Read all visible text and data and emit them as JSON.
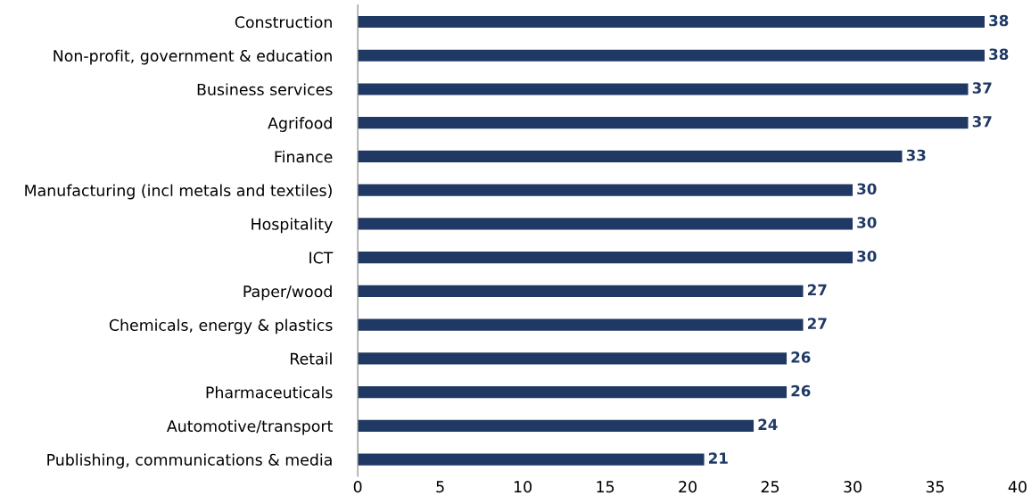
{
  "chart_data": {
    "type": "bar",
    "orientation": "horizontal",
    "categories": [
      "Construction",
      "Non-profit, government & education",
      "Business services",
      "Agrifood",
      "Finance",
      "Manufacturing (incl metals and textiles)",
      "Hospitality",
      "ICT",
      "Paper/wood",
      "Chemicals, energy & plastics",
      "Retail",
      "Pharmaceuticals",
      "Automotive/transport",
      "Publishing, communications & media"
    ],
    "values": [
      38,
      38,
      37,
      37,
      33,
      30,
      30,
      30,
      27,
      27,
      26,
      26,
      24,
      21
    ],
    "color": "#1f3864",
    "xlim": [
      0,
      40
    ],
    "xticks": [
      0,
      5,
      10,
      15,
      20,
      25,
      30,
      35,
      40
    ],
    "grid": false,
    "data_labels": true
  }
}
